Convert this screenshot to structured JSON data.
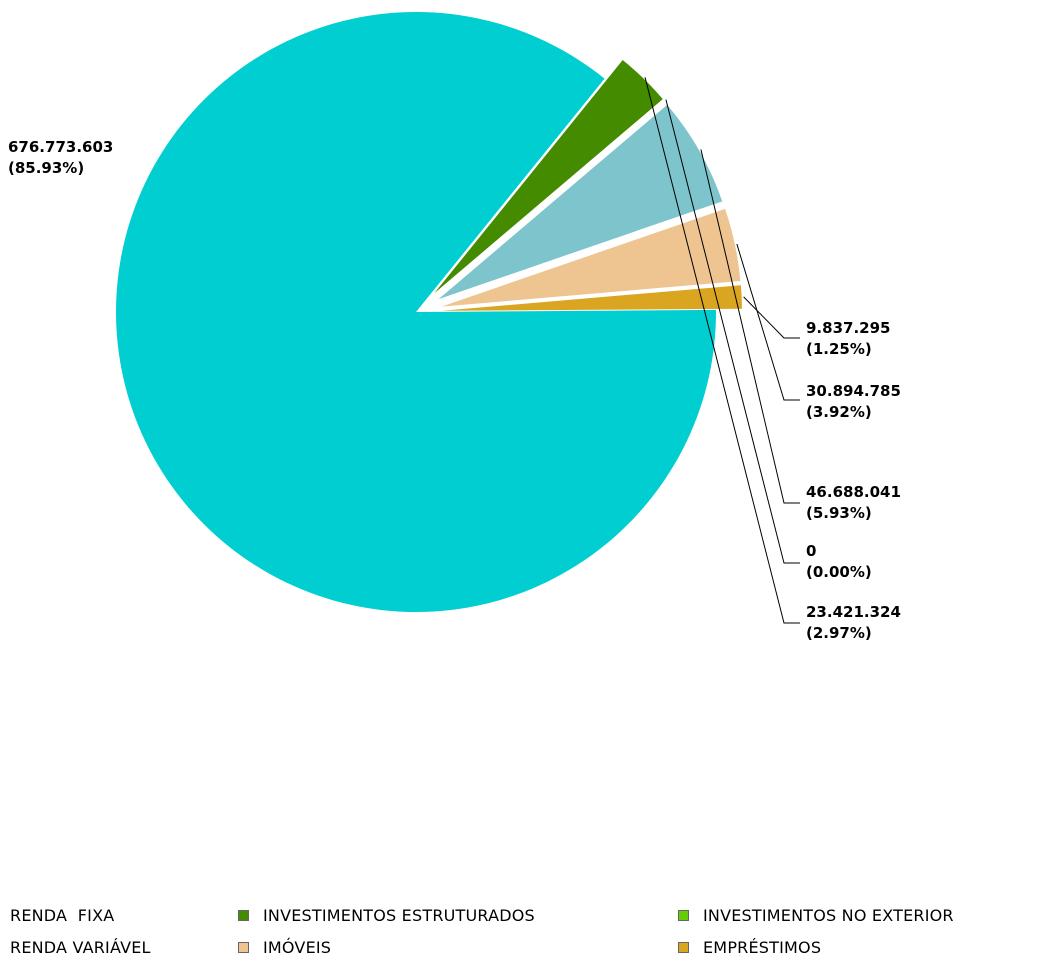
{
  "chart_data": {
    "type": "pie",
    "title": "",
    "slices": [
      {
        "name": "RENDA  FIXA",
        "value": 676773603,
        "label": "676.773.603",
        "pct": "(85.93%)",
        "color": "#00CED1"
      },
      {
        "name": "RENDA VARIÁVEL",
        "value": 46688041,
        "label": "46.688.041",
        "pct": "(5.93%)",
        "color": "#7EC4CC"
      },
      {
        "name": "INVESTIMENTOS ESTRUTURADOS",
        "value": 23421324,
        "label": "23.421.324",
        "pct": "(2.97%)",
        "color": "#458B00"
      },
      {
        "name": "IMÓVEIS",
        "value": 30894785,
        "label": "30.894.785",
        "pct": "(3.92%)",
        "color": "#EEC591"
      },
      {
        "name": "INVESTIMENTOS NO EXTERIOR",
        "value": 0,
        "label": "0",
        "pct": "(0.00%)",
        "color": "#66CD00"
      },
      {
        "name": "EMPRÉSTIMOS",
        "value": 9837295,
        "label": "9.837.295",
        "pct": "(1.25%)",
        "color": "#DAA520"
      }
    ],
    "legend_position": "bottom"
  }
}
